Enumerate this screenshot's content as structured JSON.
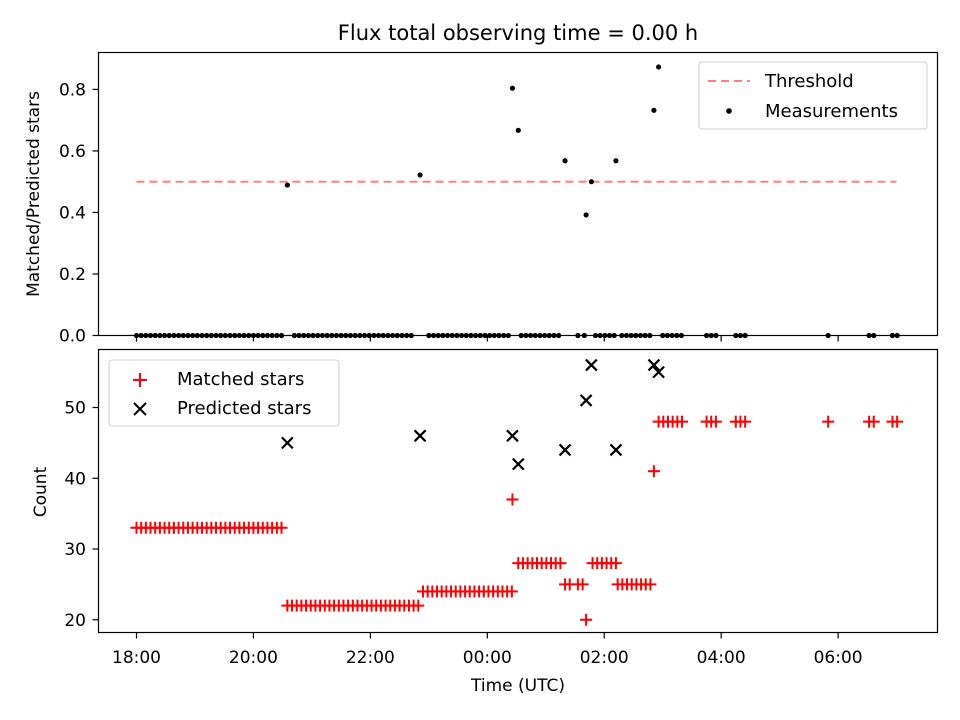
{
  "chart_data": [
    {
      "type": "scatter",
      "title": "Flux total observing time = 0.00 h",
      "ylabel": "Matched/Predicted stars",
      "xlabel": "",
      "ylim": [
        0,
        0.92
      ],
      "yticks": [
        {
          "v": 0.0,
          "label": "0.0"
        },
        {
          "v": 0.2,
          "label": "0.2"
        },
        {
          "v": 0.4,
          "label": "0.4"
        },
        {
          "v": 0.6,
          "label": "0.6"
        },
        {
          "v": 0.8,
          "label": "0.8"
        }
      ],
      "grid": false,
      "legend_position": "top-right",
      "series": [
        {
          "name": "Threshold",
          "kind": "dashed-line",
          "color": "#ff8080",
          "x": [
            0,
            13
          ],
          "y": [
            0.5,
            0.5
          ]
        },
        {
          "name": "Measurements",
          "kind": "dot",
          "color": "#000000",
          "points": [
            [
              0.0,
              0
            ],
            [
              0.08,
              0
            ],
            [
              0.16,
              0
            ],
            [
              0.24,
              0
            ],
            [
              0.32,
              0
            ],
            [
              0.4,
              0
            ],
            [
              0.48,
              0
            ],
            [
              0.56,
              0
            ],
            [
              0.64,
              0
            ],
            [
              0.72,
              0
            ],
            [
              0.8,
              0
            ],
            [
              0.88,
              0
            ],
            [
              0.96,
              0
            ],
            [
              1.04,
              0
            ],
            [
              1.12,
              0
            ],
            [
              1.2,
              0
            ],
            [
              1.28,
              0
            ],
            [
              1.36,
              0
            ],
            [
              1.44,
              0
            ],
            [
              1.52,
              0
            ],
            [
              1.6,
              0
            ],
            [
              1.68,
              0
            ],
            [
              1.76,
              0
            ],
            [
              1.84,
              0
            ],
            [
              1.92,
              0
            ],
            [
              2.0,
              0
            ],
            [
              2.08,
              0
            ],
            [
              2.16,
              0
            ],
            [
              2.24,
              0
            ],
            [
              2.32,
              0
            ],
            [
              2.4,
              0
            ],
            [
              2.48,
              0
            ],
            [
              2.58,
              0.489
            ],
            [
              2.7,
              0
            ],
            [
              2.78,
              0
            ],
            [
              2.86,
              0
            ],
            [
              2.94,
              0
            ],
            [
              3.02,
              0
            ],
            [
              3.1,
              0
            ],
            [
              3.18,
              0
            ],
            [
              3.26,
              0
            ],
            [
              3.34,
              0
            ],
            [
              3.42,
              0
            ],
            [
              3.5,
              0
            ],
            [
              3.58,
              0
            ],
            [
              3.66,
              0
            ],
            [
              3.74,
              0
            ],
            [
              3.82,
              0
            ],
            [
              3.9,
              0
            ],
            [
              3.98,
              0
            ],
            [
              4.06,
              0
            ],
            [
              4.14,
              0
            ],
            [
              4.22,
              0
            ],
            [
              4.3,
              0
            ],
            [
              4.38,
              0
            ],
            [
              4.46,
              0
            ],
            [
              4.54,
              0
            ],
            [
              4.62,
              0
            ],
            [
              4.7,
              0
            ],
            [
              4.85,
              0.522
            ],
            [
              5.0,
              0
            ],
            [
              5.08,
              0
            ],
            [
              5.16,
              0
            ],
            [
              5.24,
              0
            ],
            [
              5.32,
              0
            ],
            [
              5.4,
              0
            ],
            [
              5.48,
              0
            ],
            [
              5.56,
              0
            ],
            [
              5.64,
              0
            ],
            [
              5.72,
              0
            ],
            [
              5.8,
              0
            ],
            [
              5.88,
              0
            ],
            [
              5.96,
              0
            ],
            [
              6.04,
              0
            ],
            [
              6.12,
              0
            ],
            [
              6.2,
              0
            ],
            [
              6.28,
              0
            ],
            [
              6.36,
              0
            ],
            [
              6.43,
              0.804
            ],
            [
              6.53,
              0.667
            ],
            [
              6.58,
              0
            ],
            [
              6.66,
              0
            ],
            [
              6.74,
              0
            ],
            [
              6.82,
              0
            ],
            [
              6.9,
              0
            ],
            [
              6.98,
              0
            ],
            [
              7.06,
              0
            ],
            [
              7.14,
              0
            ],
            [
              7.22,
              0
            ],
            [
              7.33,
              0.568
            ],
            [
              7.55,
              0
            ],
            [
              7.66,
              0
            ],
            [
              7.69,
              0.392
            ],
            [
              7.78,
              0.5
            ],
            [
              7.85,
              0
            ],
            [
              7.93,
              0
            ],
            [
              8.01,
              0
            ],
            [
              8.09,
              0
            ],
            [
              8.17,
              0
            ],
            [
              8.2,
              0.568
            ],
            [
              8.3,
              0
            ],
            [
              8.38,
              0
            ],
            [
              8.46,
              0
            ],
            [
              8.54,
              0
            ],
            [
              8.62,
              0
            ],
            [
              8.7,
              0
            ],
            [
              8.78,
              0
            ],
            [
              8.85,
              0.732
            ],
            [
              8.93,
              0.873
            ],
            [
              9.0,
              0
            ],
            [
              9.08,
              0
            ],
            [
              9.16,
              0
            ],
            [
              9.24,
              0
            ],
            [
              9.32,
              0
            ],
            [
              9.75,
              0
            ],
            [
              9.83,
              0
            ],
            [
              9.91,
              0
            ],
            [
              10.25,
              0
            ],
            [
              10.33,
              0
            ],
            [
              10.41,
              0
            ],
            [
              11.83,
              0
            ],
            [
              12.53,
              0
            ],
            [
              12.61,
              0
            ],
            [
              12.93,
              0
            ],
            [
              13.01,
              0
            ]
          ]
        }
      ]
    },
    {
      "type": "scatter",
      "title": "",
      "ylabel": "Count",
      "xlabel": "Time (UTC)",
      "x_unit": "hours since 18:00 UTC",
      "xlim": [
        -0.65,
        13.7
      ],
      "ylim": [
        18.2,
        58.2
      ],
      "yticks": [
        {
          "v": 20,
          "label": "20"
        },
        {
          "v": 30,
          "label": "30"
        },
        {
          "v": 40,
          "label": "40"
        },
        {
          "v": 50,
          "label": "50"
        }
      ],
      "xticks": [
        {
          "v": 0,
          "label": "18:00"
        },
        {
          "v": 2,
          "label": "20:00"
        },
        {
          "v": 4,
          "label": "22:00"
        },
        {
          "v": 6,
          "label": "00:00"
        },
        {
          "v": 8,
          "label": "02:00"
        },
        {
          "v": 10,
          "label": "04:00"
        },
        {
          "v": 12,
          "label": "06:00"
        }
      ],
      "grid": false,
      "legend_position": "top-left",
      "series": [
        {
          "name": "Matched stars",
          "kind": "plus",
          "color": "#ff0000",
          "points": [
            [
              0.0,
              33
            ],
            [
              0.08,
              33
            ],
            [
              0.16,
              33
            ],
            [
              0.24,
              33
            ],
            [
              0.32,
              33
            ],
            [
              0.4,
              33
            ],
            [
              0.48,
              33
            ],
            [
              0.56,
              33
            ],
            [
              0.64,
              33
            ],
            [
              0.72,
              33
            ],
            [
              0.8,
              33
            ],
            [
              0.88,
              33
            ],
            [
              0.96,
              33
            ],
            [
              1.04,
              33
            ],
            [
              1.12,
              33
            ],
            [
              1.2,
              33
            ],
            [
              1.28,
              33
            ],
            [
              1.36,
              33
            ],
            [
              1.44,
              33
            ],
            [
              1.52,
              33
            ],
            [
              1.6,
              33
            ],
            [
              1.68,
              33
            ],
            [
              1.76,
              33
            ],
            [
              1.84,
              33
            ],
            [
              1.92,
              33
            ],
            [
              2.0,
              33
            ],
            [
              2.08,
              33
            ],
            [
              2.16,
              33
            ],
            [
              2.24,
              33
            ],
            [
              2.32,
              33
            ],
            [
              2.4,
              33
            ],
            [
              2.48,
              33
            ],
            [
              2.58,
              22
            ],
            [
              2.66,
              22
            ],
            [
              2.74,
              22
            ],
            [
              2.82,
              22
            ],
            [
              2.9,
              22
            ],
            [
              2.98,
              22
            ],
            [
              3.06,
              22
            ],
            [
              3.14,
              22
            ],
            [
              3.22,
              22
            ],
            [
              3.3,
              22
            ],
            [
              3.38,
              22
            ],
            [
              3.46,
              22
            ],
            [
              3.54,
              22
            ],
            [
              3.62,
              22
            ],
            [
              3.7,
              22
            ],
            [
              3.78,
              22
            ],
            [
              3.86,
              22
            ],
            [
              3.94,
              22
            ],
            [
              4.02,
              22
            ],
            [
              4.1,
              22
            ],
            [
              4.18,
              22
            ],
            [
              4.26,
              22
            ],
            [
              4.34,
              22
            ],
            [
              4.42,
              22
            ],
            [
              4.5,
              22
            ],
            [
              4.58,
              22
            ],
            [
              4.66,
              22
            ],
            [
              4.74,
              22
            ],
            [
              4.82,
              22
            ],
            [
              4.9,
              24
            ],
            [
              4.98,
              24
            ],
            [
              5.06,
              24
            ],
            [
              5.14,
              24
            ],
            [
              5.22,
              24
            ],
            [
              5.3,
              24
            ],
            [
              5.38,
              24
            ],
            [
              5.46,
              24
            ],
            [
              5.54,
              24
            ],
            [
              5.62,
              24
            ],
            [
              5.7,
              24
            ],
            [
              5.78,
              24
            ],
            [
              5.86,
              24
            ],
            [
              5.94,
              24
            ],
            [
              6.02,
              24
            ],
            [
              6.1,
              24
            ],
            [
              6.18,
              24
            ],
            [
              6.26,
              24
            ],
            [
              6.34,
              24
            ],
            [
              6.42,
              24
            ],
            [
              6.43,
              37
            ],
            [
              6.53,
              28
            ],
            [
              6.61,
              28
            ],
            [
              6.69,
              28
            ],
            [
              6.77,
              28
            ],
            [
              6.85,
              28
            ],
            [
              6.93,
              28
            ],
            [
              7.01,
              28
            ],
            [
              7.09,
              28
            ],
            [
              7.17,
              28
            ],
            [
              7.25,
              28
            ],
            [
              7.33,
              25
            ],
            [
              7.41,
              25
            ],
            [
              7.55,
              25
            ],
            [
              7.63,
              25
            ],
            [
              7.69,
              20
            ],
            [
              7.8,
              28
            ],
            [
              7.88,
              28
            ],
            [
              7.96,
              28
            ],
            [
              8.04,
              28
            ],
            [
              8.12,
              28
            ],
            [
              8.2,
              28
            ],
            [
              8.23,
              25
            ],
            [
              8.31,
              25
            ],
            [
              8.39,
              25
            ],
            [
              8.47,
              25
            ],
            [
              8.55,
              25
            ],
            [
              8.63,
              25
            ],
            [
              8.71,
              25
            ],
            [
              8.79,
              25
            ],
            [
              8.85,
              41
            ],
            [
              8.93,
              48
            ],
            [
              9.01,
              48
            ],
            [
              9.09,
              48
            ],
            [
              9.17,
              48
            ],
            [
              9.25,
              48
            ],
            [
              9.33,
              48
            ],
            [
              9.75,
              48
            ],
            [
              9.83,
              48
            ],
            [
              9.91,
              48
            ],
            [
              10.25,
              48
            ],
            [
              10.33,
              48
            ],
            [
              10.41,
              48
            ],
            [
              11.83,
              48
            ],
            [
              12.53,
              48
            ],
            [
              12.61,
              48
            ],
            [
              12.93,
              48
            ],
            [
              13.01,
              48
            ]
          ]
        },
        {
          "name": "Predicted stars",
          "kind": "x",
          "color": "#000000",
          "points": [
            [
              2.58,
              45
            ],
            [
              4.85,
              46
            ],
            [
              6.43,
              46
            ],
            [
              6.53,
              42
            ],
            [
              7.33,
              44
            ],
            [
              7.69,
              51
            ],
            [
              7.78,
              56
            ],
            [
              8.2,
              44
            ],
            [
              8.85,
              56
            ],
            [
              8.93,
              55
            ]
          ]
        }
      ]
    }
  ]
}
